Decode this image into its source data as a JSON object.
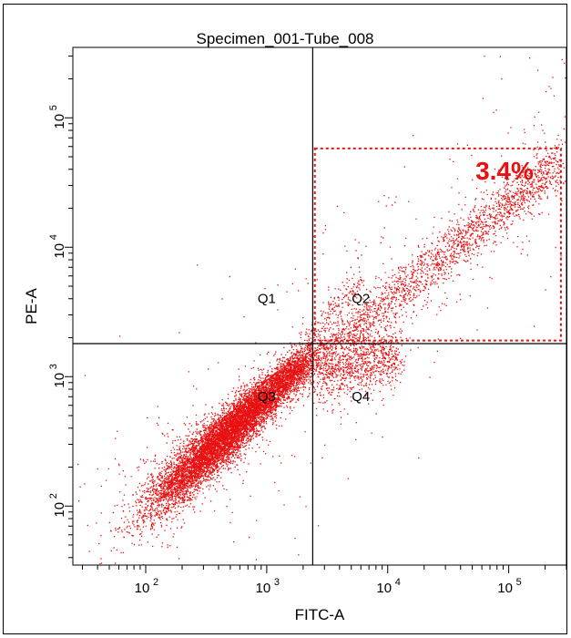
{
  "chart_data": {
    "type": "scatter",
    "title": "Specimen_001-Tube_008",
    "xlabel": "FITC-A",
    "ylabel": "PE-A",
    "x_scale": "log",
    "y_scale": "log",
    "xlim": [
      25,
      300000
    ],
    "ylim": [
      35,
      350000
    ],
    "x_ticks": [
      {
        "value": 100,
        "label": "10",
        "exp": "2"
      },
      {
        "value": 1000,
        "label": "10",
        "exp": "3"
      },
      {
        "value": 10000,
        "label": "10",
        "exp": "4"
      },
      {
        "value": 100000,
        "label": "10",
        "exp": "5"
      }
    ],
    "y_ticks": [
      {
        "value": 100,
        "label": "10",
        "exp": "2"
      },
      {
        "value": 1000,
        "label": "10",
        "exp": "3"
      },
      {
        "value": 10000,
        "label": "10",
        "exp": "4"
      },
      {
        "value": 100000,
        "label": "10",
        "exp": "5"
      }
    ],
    "quadrant_divider": {
      "x": 2400,
      "y": 1800
    },
    "quadrants": [
      {
        "name": "Q1",
        "x": 1000,
        "y": 3700
      },
      {
        "name": "Q2",
        "x": 6000,
        "y": 3700
      },
      {
        "name": "Q3",
        "x": 1000,
        "y": 650
      },
      {
        "name": "Q4",
        "x": 6000,
        "y": 650
      }
    ],
    "gate": {
      "x0": 2500,
      "x1": 270000,
      "y0": 1900,
      "y1": 58000,
      "label": "3.4%",
      "color": "#e81010"
    },
    "series": [
      {
        "color": "#e81010",
        "clusters": [
          {
            "x": 380,
            "y": 300,
            "sx": 0.26,
            "sy": 0.24,
            "rho": 0.9,
            "n": 5500
          },
          {
            "x": 900,
            "y": 650,
            "sx": 0.2,
            "sy": 0.18,
            "rho": 0.88,
            "n": 2600
          },
          {
            "x": 1600,
            "y": 1100,
            "sx": 0.12,
            "sy": 0.1,
            "rho": 0.8,
            "n": 700
          },
          {
            "x": 180,
            "y": 170,
            "sx": 0.2,
            "sy": 0.22,
            "rho": 0.6,
            "n": 500
          }
        ],
        "diagonal_band": {
          "x_start": 1500,
          "x_end": 260000,
          "y_at_start": 900,
          "y_at_end": 45000,
          "spread": 0.1,
          "n": 2200
        },
        "lower_band": {
          "x_start": 2500,
          "x_end": 12000,
          "y_at_start": 1000,
          "y_at_end": 1500,
          "spread": 0.12,
          "n": 900
        },
        "upper_arm": {
          "x_start": 2000,
          "x_end": 6000,
          "y_at_start": 2000,
          "y_at_end": 5500,
          "spread": 0.06,
          "n": 180
        },
        "background_scatter": {
          "n": 500
        }
      }
    ]
  }
}
